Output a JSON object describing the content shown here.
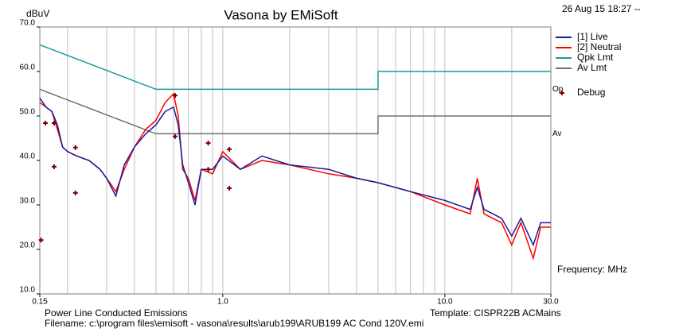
{
  "chart_data": {
    "type": "line",
    "title": "Vasona by EMiSoft",
    "ylabel": "dBuV",
    "timestamp": "26 Aug 15 18:27 --",
    "xlabel": "Frequency: MHz",
    "footer_left": "Power Line Conducted Emissions",
    "footer_right": "Template: CISPR22B ACMains",
    "filename": "Filename: c:\\program files\\emisoft - vasona\\results\\arub199\\ARUB199 AC Cond 120V.emi",
    "annotations": [
      {
        "text": "Op",
        "y": 56
      },
      {
        "text": "Av",
        "y": 46
      }
    ],
    "xscale": "log",
    "xlim": [
      0.15,
      30
    ],
    "ylim": [
      10,
      70
    ],
    "xticks": [
      0.15,
      {
        "value": 1,
        "label": "1.0"
      },
      {
        "value": 10,
        "label": "10.0"
      },
      {
        "value": 30,
        "label": "30.0"
      }
    ],
    "xgrid": [
      0.2,
      0.3,
      0.4,
      0.5,
      0.6,
      0.7,
      0.8,
      0.9,
      1,
      2,
      3,
      4,
      5,
      6,
      7,
      8,
      9,
      10,
      20
    ],
    "yticks": [
      {
        "value": 10,
        "label": "10.0"
      },
      {
        "value": 20,
        "label": "20.0"
      },
      {
        "value": 30,
        "label": "30.0"
      },
      {
        "value": 40,
        "label": "40.0"
      },
      {
        "value": 50,
        "label": "50.0"
      },
      {
        "value": 60,
        "label": "60.0"
      },
      {
        "value": 70,
        "label": "70.0"
      }
    ],
    "series": [
      {
        "name": "[1] Live",
        "color": "#1a1a9a",
        "style": "line",
        "x": [
          0.15,
          0.16,
          0.17,
          0.18,
          0.19,
          0.2,
          0.22,
          0.25,
          0.28,
          0.3,
          0.33,
          0.36,
          0.4,
          0.45,
          0.5,
          0.55,
          0.6,
          0.63,
          0.66,
          0.7,
          0.75,
          0.8,
          0.9,
          1.0,
          1.2,
          1.5,
          2,
          3,
          4,
          5,
          7,
          10,
          13,
          14,
          15,
          18,
          20,
          22,
          25,
          27,
          30
        ],
        "values": [
          54,
          52,
          51,
          48,
          43,
          42,
          41,
          40,
          38,
          36,
          32,
          39,
          43,
          46,
          48,
          51,
          52,
          48,
          39,
          35,
          30,
          38,
          38,
          41,
          38,
          41,
          39,
          38,
          36,
          35,
          33,
          31,
          29,
          34,
          29,
          27,
          23,
          27,
          21,
          26,
          26
        ]
      },
      {
        "name": "[2] Neutral",
        "color": "#ff0000",
        "style": "line",
        "x": [
          0.15,
          0.16,
          0.17,
          0.18,
          0.19,
          0.2,
          0.22,
          0.25,
          0.28,
          0.3,
          0.33,
          0.36,
          0.4,
          0.45,
          0.5,
          0.55,
          0.6,
          0.63,
          0.66,
          0.7,
          0.75,
          0.8,
          0.9,
          1.0,
          1.2,
          1.5,
          2,
          3,
          4,
          5,
          7,
          10,
          13,
          14,
          15,
          18,
          20,
          22,
          25,
          27,
          30
        ],
        "values": [
          53,
          52,
          51,
          47,
          43,
          42,
          41,
          40,
          38,
          36,
          33,
          38,
          43,
          47,
          49,
          53,
          55,
          50,
          38,
          36,
          31,
          38,
          37,
          42,
          38,
          40,
          39,
          37,
          36,
          35,
          33,
          30,
          28,
          36,
          28,
          26,
          21,
          26,
          18,
          25,
          25
        ]
      },
      {
        "name": "Qpk Lmt",
        "color": "#1a9a9a",
        "style": "line",
        "x": [
          0.15,
          0.5,
          5,
          5,
          30
        ],
        "values": [
          66,
          56,
          56,
          60,
          60
        ]
      },
      {
        "name": "Av Lmt",
        "color": "#707070",
        "style": "line",
        "x": [
          0.15,
          0.5,
          5,
          5,
          30
        ],
        "values": [
          56,
          46,
          46,
          50,
          50
        ]
      },
      {
        "name": "Debug",
        "color": "#800000",
        "style": "scatter",
        "x": [
          0.159,
          0.174,
          0.174,
          0.217,
          0.217,
          0.152,
          0.61,
          0.61,
          0.86,
          0.86,
          1.07,
          1.07
        ],
        "values": [
          48.4,
          48.4,
          38.6,
          42.9,
          32.7,
          22.1,
          54.6,
          45.4,
          43.9,
          38,
          42.5,
          33.75
        ]
      }
    ]
  }
}
